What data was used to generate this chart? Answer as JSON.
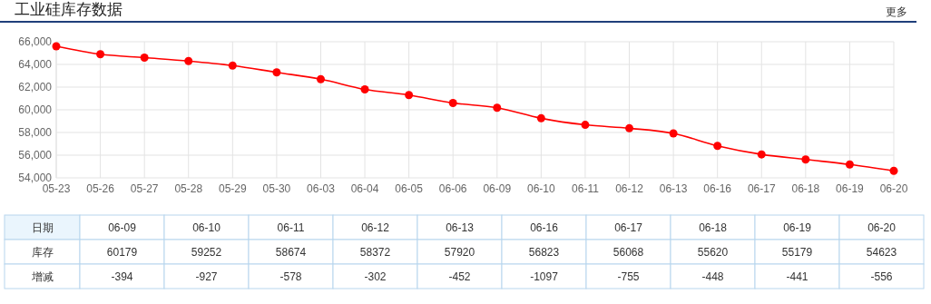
{
  "chart_data": [
    {
      "type": "line",
      "title": "工业硅库存数据",
      "annotations": [
        "更多"
      ],
      "categories": [
        "05-23",
        "05-26",
        "05-27",
        "05-28",
        "05-29",
        "05-30",
        "06-03",
        "06-04",
        "06-05",
        "06-06",
        "06-09",
        "06-10",
        "06-11",
        "06-12",
        "06-13",
        "06-16",
        "06-17",
        "06-18",
        "06-19",
        "06-20"
      ],
      "series": [
        {
          "color": "#ff0000",
          "values": [
            65600,
            64900,
            64600,
            64300,
            63900,
            63300,
            62700,
            61800,
            61300,
            60600,
            60179,
            59252,
            58674,
            58372,
            57920,
            56823,
            56068,
            55620,
            55179,
            54623
          ]
        }
      ],
      "ylim": [
        54000,
        66000
      ],
      "yticks": [
        {
          "value": 54000,
          "label": "54,000"
        },
        {
          "value": 56000,
          "label": "56,000"
        },
        {
          "value": 58000,
          "label": "58,000"
        },
        {
          "value": 60000,
          "label": "60,000"
        },
        {
          "value": 62000,
          "label": "62,000"
        },
        {
          "value": 64000,
          "label": "64,000"
        },
        {
          "value": 66000,
          "label": "66,000"
        }
      ],
      "grid": true,
      "marker": "circle"
    },
    {
      "type": "other",
      "data_labels": true,
      "xlabel": "日期",
      "categories": [
        "06-09",
        "06-10",
        "06-11",
        "06-12",
        "06-13",
        "06-16",
        "06-17",
        "06-18",
        "06-19",
        "06-20"
      ],
      "series": [
        {
          "name": "库存",
          "values": [
            60179,
            59252,
            58674,
            58372,
            57920,
            56823,
            56068,
            55620,
            55179,
            54623
          ]
        },
        {
          "name": "增减",
          "values": [
            -394,
            -927,
            -578,
            -302,
            -452,
            -1097,
            -755,
            -448,
            -441,
            -556
          ]
        }
      ]
    }
  ]
}
